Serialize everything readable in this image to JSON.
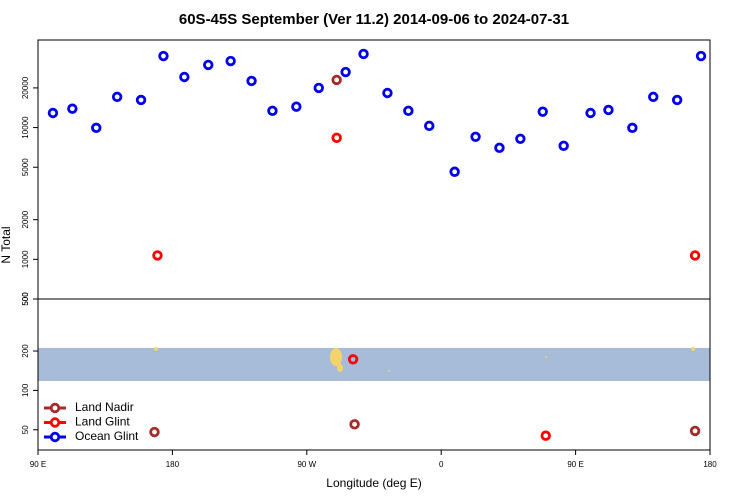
{
  "chart_data": [
    {
      "type": "scatter",
      "title": "60S-45S September (Ver 11.2)   2014-09-06 to 2024-07-31",
      "ylabel": "N Total",
      "log_y": true,
      "ylim": [
        500,
        46200
      ],
      "yticks": [
        500,
        1000,
        2000,
        5000,
        10000,
        20000
      ],
      "series": [
        {
          "name": "Land Nadir",
          "color": "#a52a2a",
          "x": [
            290
          ],
          "values": [
            23000
          ]
        },
        {
          "name": "Land Glint",
          "color": "#ff0000",
          "x": [
            170,
            290,
            530
          ],
          "values": [
            1070,
            8360,
            1070
          ]
        },
        {
          "name": "Ocean Glint",
          "color": "#0000ee",
          "x": [
            100,
            113,
            129,
            143,
            159,
            174,
            188,
            204,
            219,
            233,
            247,
            263,
            278,
            296,
            308,
            324,
            338,
            352,
            369,
            383,
            399,
            413,
            428,
            442,
            460,
            472,
            488,
            502,
            518,
            534
          ],
          "values": [
            12900,
            13900,
            9950,
            17100,
            16200,
            34900,
            24200,
            29900,
            32000,
            22600,
            13400,
            14400,
            20000,
            26400,
            36200,
            18300,
            13400,
            10300,
            4620,
            8510,
            7020,
            8220,
            13200,
            7270,
            12900,
            13600,
            9950,
            17100,
            16200,
            34900
          ]
        }
      ]
    },
    {
      "type": "scatter",
      "xlabel": "Longitude (deg E)",
      "log_y": true,
      "ylim": [
        35,
        500
      ],
      "yticks": [
        50,
        100,
        200,
        500
      ],
      "xlim": [
        90,
        540
      ],
      "xticks": [
        {
          "value": 90,
          "label": "90 E"
        },
        180,
        {
          "value": 270,
          "label": "90 W"
        },
        {
          "value": 360,
          "label": "0"
        },
        {
          "value": 450,
          "label": "90 E"
        },
        {
          "value": 540,
          "label": "180"
        }
      ],
      "legend": "upper left",
      "series": [
        {
          "color": "#a52a2a",
          "x": [
            168,
            302,
            530
          ],
          "values": [
            48,
            55,
            49
          ]
        },
        {
          "color": "#ff0000",
          "x": [
            301,
            430
          ],
          "values": [
            173,
            45
          ]
        }
      ]
    }
  ]
}
